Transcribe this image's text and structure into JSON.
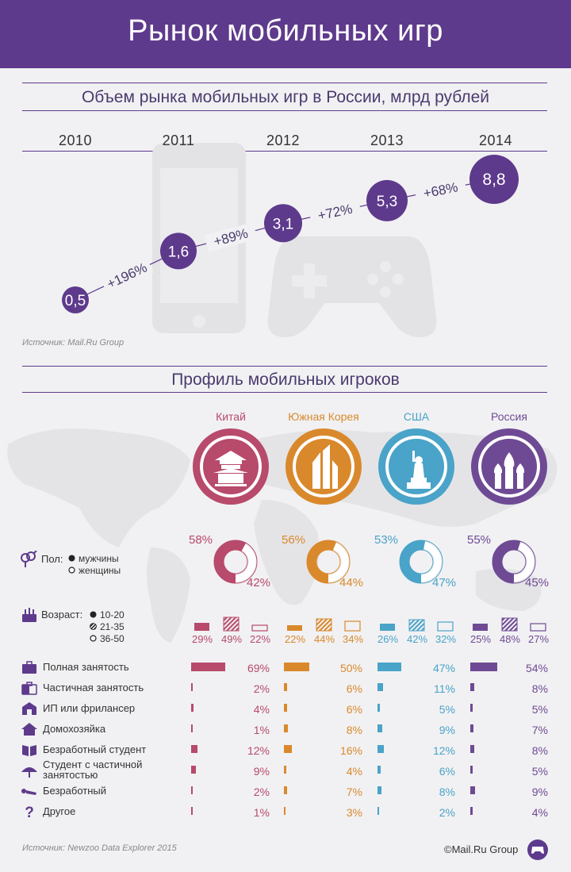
{
  "header": {
    "title": "Рынок мобильных игр"
  },
  "market": {
    "title": "Объем рынка мобильных игр в России, млрд рублей",
    "source": "Источник: Mail.Ru Group"
  },
  "profile": {
    "title": "Профиль мобильных игроков",
    "gender_label": "Пол:",
    "gender_male": "мужчины",
    "gender_female": "женщины",
    "age_label": "Возраст:",
    "age_1": "10-20",
    "age_2": "21-35",
    "age_3": "36-50",
    "source": "Источник: Newzoo Data Explorer 2015",
    "copyright": "©Mail.Ru Group"
  },
  "colors": {
    "purple": "#5e3a8c",
    "china": "#b84a6b",
    "korea": "#d9892c",
    "usa": "#4aa3c8",
    "russia": "#6f4a94",
    "bg": "#f1f1f3"
  },
  "chart_data": [
    {
      "type": "line",
      "title": "Объем рынка мобильных игр в России, млрд рублей",
      "x": [
        "2010",
        "2011",
        "2012",
        "2013",
        "2014"
      ],
      "values": [
        0.5,
        1.6,
        3.1,
        5.3,
        8.8
      ],
      "value_labels": [
        "0,5",
        "1,6",
        "3,1",
        "5,3",
        "8,8"
      ],
      "growth_labels": [
        "+196%",
        "+89%",
        "+72%",
        "+68%"
      ]
    },
    {
      "type": "bar",
      "title": "Профиль мобильных игроков",
      "countries": [
        {
          "name": "Китай",
          "color": "#b84a6b",
          "male": "58%",
          "female": "42%",
          "male_v": 58,
          "age": [
            "29%",
            "49%",
            "22%"
          ],
          "age_v": [
            29,
            49,
            22
          ],
          "employment": [
            "69%",
            "2%",
            "4%",
            "1%",
            "12%",
            "9%",
            "2%",
            "1%"
          ],
          "employment_v": [
            69,
            2,
            4,
            1,
            12,
            9,
            2,
            1
          ]
        },
        {
          "name": "Южная Корея",
          "color": "#d9892c",
          "male": "56%",
          "female": "44%",
          "male_v": 56,
          "age": [
            "22%",
            "44%",
            "34%"
          ],
          "age_v": [
            22,
            44,
            34
          ],
          "employment": [
            "50%",
            "6%",
            "6%",
            "8%",
            "16%",
            "4%",
            "7%",
            "3%"
          ],
          "employment_v": [
            50,
            6,
            6,
            8,
            16,
            4,
            7,
            3
          ]
        },
        {
          "name": "США",
          "color": "#4aa3c8",
          "male": "53%",
          "female": "47%",
          "male_v": 53,
          "age": [
            "26%",
            "42%",
            "32%"
          ],
          "age_v": [
            26,
            42,
            32
          ],
          "employment": [
            "47%",
            "11%",
            "5%",
            "9%",
            "12%",
            "6%",
            "8%",
            "2%"
          ],
          "employment_v": [
            47,
            11,
            5,
            9,
            12,
            6,
            8,
            2
          ]
        },
        {
          "name": "Россия",
          "color": "#6f4a94",
          "male": "55%",
          "female": "45%",
          "male_v": 55,
          "age": [
            "25%",
            "48%",
            "27%"
          ],
          "age_v": [
            25,
            48,
            27
          ],
          "employment": [
            "54%",
            "8%",
            "5%",
            "7%",
            "8%",
            "5%",
            "9%",
            "4%"
          ],
          "employment_v": [
            54,
            8,
            5,
            7,
            8,
            5,
            9,
            4
          ]
        }
      ],
      "employment_rows": [
        {
          "label": "Полная занятость",
          "icon": "briefcase-icon"
        },
        {
          "label": "Частичная занятость",
          "icon": "half-briefcase-icon"
        },
        {
          "label": "ИП или фрилансер",
          "icon": "building-icon"
        },
        {
          "label": "Домохозяйка",
          "icon": "house-icon"
        },
        {
          "label": "Безработный студент",
          "icon": "book-icon"
        },
        {
          "label": "Студент с частичной занятостью",
          "icon": "umbrella-icon"
        },
        {
          "label": "Безработный",
          "icon": "lying-person-icon"
        },
        {
          "label": "Другое",
          "icon": "question-icon"
        }
      ]
    }
  ]
}
